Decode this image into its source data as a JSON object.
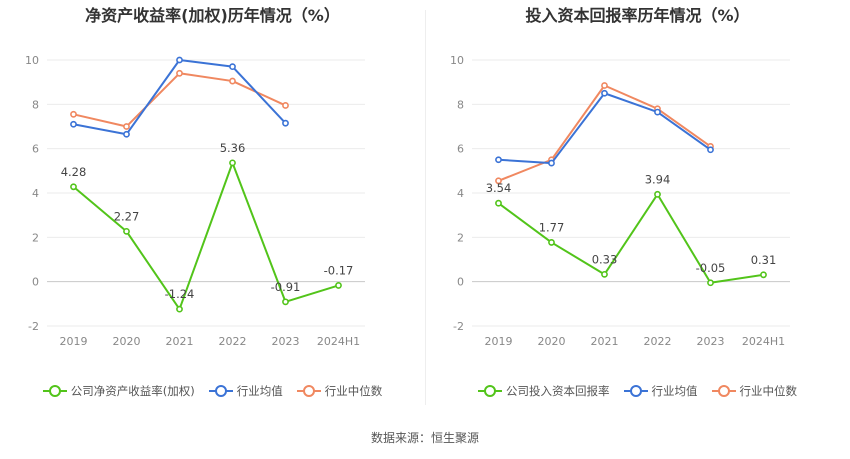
{
  "footer": "数据来源：恒生聚源",
  "chart_data": [
    {
      "type": "line",
      "title": "净资产收益率(加权)历年情况（%）",
      "categories": [
        "2019",
        "2020",
        "2021",
        "2022",
        "2023",
        "2024H1"
      ],
      "ylim": [
        -2,
        10
      ],
      "yticks": [
        -2,
        0,
        2,
        4,
        6,
        8,
        10
      ],
      "grid": true,
      "legend_position": "bottom",
      "series": [
        {
          "name": "公司净资产收益率(加权)",
          "color": "#52c41a",
          "values": [
            4.28,
            2.27,
            -1.24,
            5.36,
            -0.91,
            -0.17
          ],
          "labels": [
            "4.28",
            "2.27",
            "-1.24",
            "5.36",
            "-0.91",
            "-0.17"
          ]
        },
        {
          "name": "行业均值",
          "color": "#3b73d6",
          "values": [
            7.1,
            6.65,
            10.0,
            9.7,
            7.15,
            null
          ]
        },
        {
          "name": "行业中位数",
          "color": "#f08860",
          "values": [
            7.55,
            7.0,
            9.4,
            9.05,
            7.95,
            null
          ]
        }
      ]
    },
    {
      "type": "line",
      "title": "投入资本回报率历年情况（%）",
      "categories": [
        "2019",
        "2020",
        "2021",
        "2022",
        "2023",
        "2024H1"
      ],
      "ylim": [
        -2,
        10
      ],
      "yticks": [
        -2,
        0,
        2,
        4,
        6,
        8,
        10
      ],
      "grid": true,
      "legend_position": "bottom",
      "series": [
        {
          "name": "公司投入资本回报率",
          "color": "#52c41a",
          "values": [
            3.54,
            1.77,
            0.33,
            3.94,
            -0.05,
            0.31
          ],
          "labels": [
            "3.54",
            "1.77",
            "0.33",
            "3.94",
            "-0.05",
            "0.31"
          ]
        },
        {
          "name": "行业均值",
          "color": "#3b73d6",
          "values": [
            5.5,
            5.35,
            8.5,
            7.65,
            5.95,
            null
          ]
        },
        {
          "name": "行业中位数",
          "color": "#f08860",
          "values": [
            4.55,
            5.5,
            8.85,
            7.8,
            6.1,
            null
          ]
        }
      ]
    }
  ]
}
